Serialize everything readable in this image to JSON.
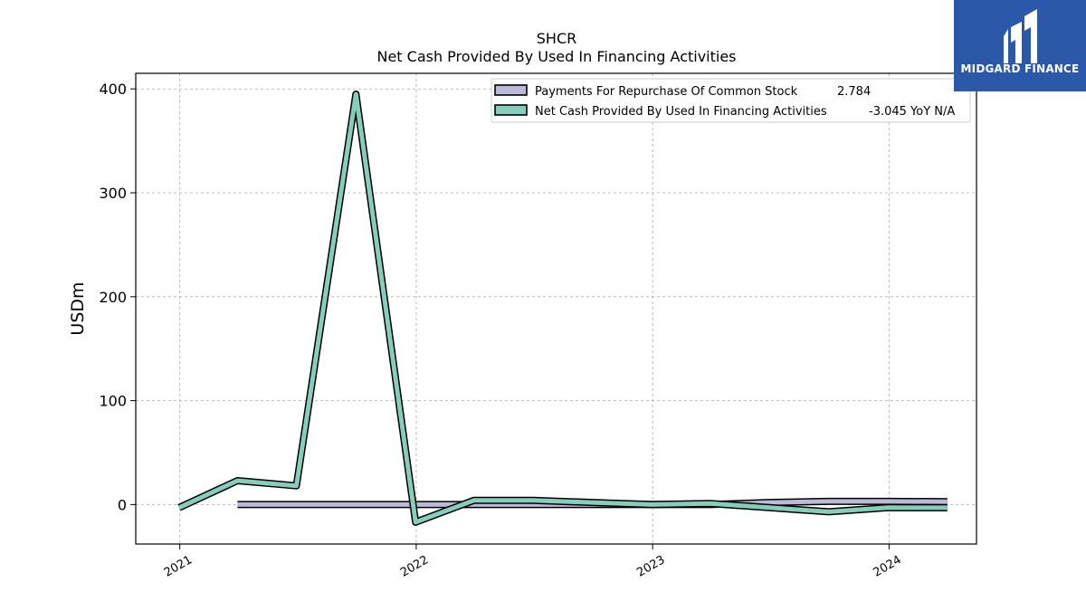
{
  "brand": {
    "name": "MIDGARD FINANCE",
    "color": "#2b58a8"
  },
  "chart_data": {
    "type": "line",
    "title": "SHCR",
    "subtitle": "Net Cash Provided By Used In Financing Activities",
    "ylabel": "USDm",
    "xlabel": "",
    "xlim": [
      "2020-10-25",
      "2024-05-15"
    ],
    "ylim": [
      -38,
      415
    ],
    "yticks": [
      0,
      100,
      200,
      300,
      400
    ],
    "xticks": [
      "2021",
      "2022",
      "2023",
      "2024"
    ],
    "grid": true,
    "legend_position": "top-right",
    "series": [
      {
        "name": "Payments For Repurchase Of Common Stock",
        "legend_value": "2.784",
        "color": "#bcb8d8",
        "x": [
          "2021-03-31",
          "2021-06-30",
          "2021-09-30",
          "2021-12-31",
          "2022-03-31",
          "2022-06-30",
          "2022-09-30",
          "2022-12-31",
          "2023-03-31",
          "2023-06-30",
          "2023-09-30",
          "2023-12-31",
          "2024-03-31"
        ],
        "values": [
          0,
          0,
          0,
          0,
          0,
          0,
          0,
          0,
          0,
          2,
          3,
          3,
          2.784
        ]
      },
      {
        "name": "Net Cash Provided By Used In Financing Activities",
        "legend_value": "-3.045 YoY N/A",
        "color": "#86cdbc",
        "x": [
          "2020-12-31",
          "2021-03-31",
          "2021-06-30",
          "2021-09-30",
          "2021-12-31",
          "2022-03-31",
          "2022-06-30",
          "2022-09-30",
          "2022-12-31",
          "2023-03-31",
          "2023-06-30",
          "2023-09-30",
          "2023-12-31",
          "2024-03-31"
        ],
        "values": [
          -3,
          23,
          18,
          395,
          -17,
          4,
          4,
          2,
          0,
          1,
          -3,
          -7,
          -3,
          -3.045
        ]
      }
    ]
  }
}
